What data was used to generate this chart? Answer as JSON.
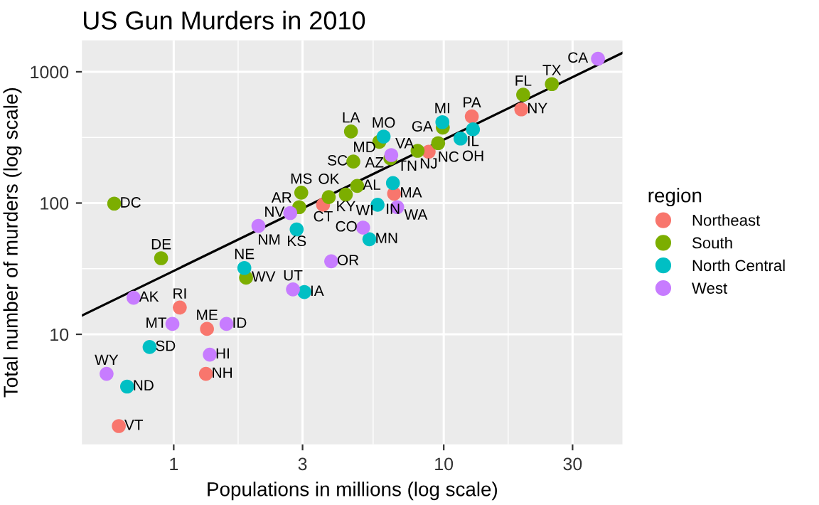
{
  "chart_data": {
    "type": "scatter",
    "title": "US Gun Murders in 2010",
    "xlabel": "Populations in millions (log scale)",
    "ylabel": "Total number of murders (log scale)",
    "legend_title": "region",
    "log": "xy",
    "xlim": [
      0.457,
      45.9
    ],
    "ylim": [
      1.45,
      1734
    ],
    "xticks": [
      1,
      3,
      10,
      30
    ],
    "yticks": [
      10,
      100,
      1000
    ],
    "grid": true,
    "legend": "right",
    "marker": "circle",
    "series": [
      {
        "name": "Northeast",
        "color": "#f8766d",
        "x": [
          3.574,
          1.328,
          6.548,
          1.316,
          8.792,
          19.378,
          12.702,
          1.053,
          0.626
        ],
        "values": [
          97,
          11,
          118,
          5,
          246,
          517,
          457,
          16,
          2
        ],
        "value_labels": [
          "CT",
          "ME",
          "MA",
          "NH",
          "NJ",
          "NY",
          "PA",
          "RI",
          "VT"
        ]
      },
      {
        "name": "South",
        "color": "#7cae00",
        "x": [
          4.78,
          2.916,
          0.898,
          0.602,
          19.688,
          9.92,
          4.339,
          4.533,
          5.774,
          2.967,
          9.535,
          3.751,
          4.625,
          6.346,
          25.146,
          8.001,
          1.853
        ],
        "values": [
          135,
          93,
          38,
          99,
          669,
          376,
          116,
          351,
          293,
          120,
          286,
          111,
          207,
          219,
          805,
          250,
          27
        ],
        "value_labels": [
          "AL",
          "AR",
          "DE",
          "DC",
          "FL",
          "GA",
          "KY",
          "LA",
          "MD",
          "MS",
          "NC",
          "OK",
          "SC",
          "TN",
          "TX",
          "VA",
          "WV"
        ]
      },
      {
        "name": "North Central",
        "color": "#00bfc4",
        "x": [
          12.831,
          6.484,
          3.046,
          2.853,
          9.884,
          5.304,
          5.989,
          1.826,
          0.672,
          11.537,
          0.814,
          5.687
        ],
        "values": [
          364,
          142,
          21,
          63,
          413,
          53,
          321,
          32,
          4,
          310,
          8,
          97
        ],
        "value_labels": [
          "IL",
          "IN",
          "IA",
          "KS",
          "MI",
          "MN",
          "MO",
          "NE",
          "ND",
          "OH",
          "SD",
          "WI"
        ]
      },
      {
        "name": "West",
        "color": "#c77cff",
        "x": [
          0.71,
          6.392,
          37.254,
          5.029,
          1.36,
          1.568,
          0.989,
          2.701,
          2.059,
          3.831,
          2.764,
          6.725,
          0.564
        ],
        "values": [
          19,
          232,
          1257,
          65,
          7,
          12,
          12,
          84,
          67,
          36,
          22,
          93,
          5
        ],
        "value_labels": [
          "AK",
          "AZ",
          "CA",
          "CO",
          "HI",
          "ID",
          "MT",
          "NV",
          "NM",
          "OR",
          "UT",
          "WA",
          "WY"
        ]
      },
      {
        "type": "line",
        "marker": "none",
        "color": "#000000",
        "x": [
          0.457,
          45.9
        ],
        "values": [
          13.9,
          1393
        ]
      }
    ]
  }
}
